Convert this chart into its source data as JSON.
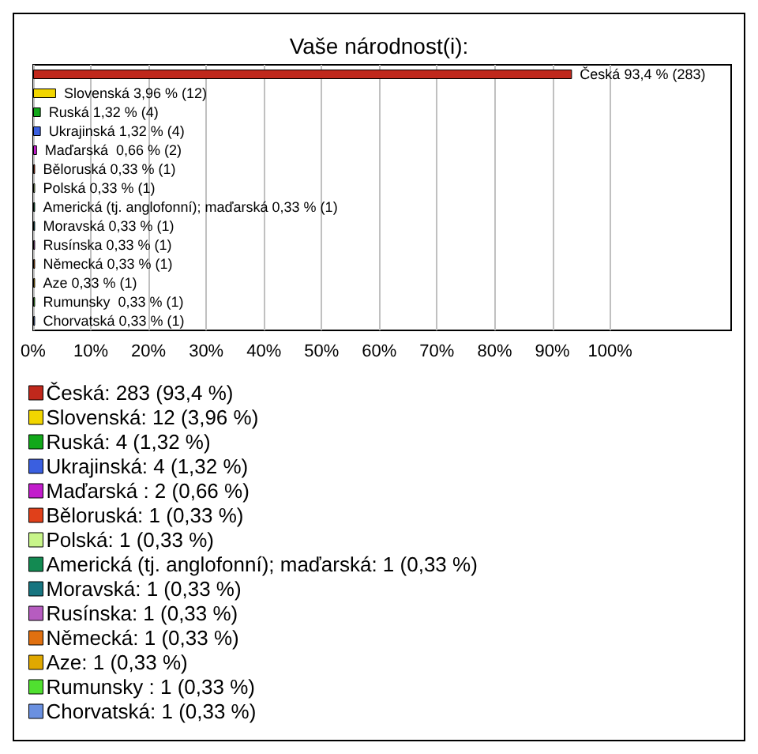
{
  "chart_data": {
    "type": "bar",
    "title": "Vaše národnost(i):",
    "orientation": "horizontal",
    "stacked": true,
    "categories": [
      null,
      null,
      null,
      null,
      null,
      null,
      null,
      null,
      null,
      null,
      null,
      null,
      null,
      null
    ],
    "series": [
      {
        "name": "Česká: 283 (93,4 %)",
        "color": "#c0281c",
        "values": [
          93.4,
          null,
          null,
          null,
          null,
          null,
          null,
          null,
          null,
          null,
          null,
          null,
          null,
          null
        ],
        "value_labels": [
          "Česká 93,4 % (283)",
          null,
          null,
          null,
          null,
          null,
          null,
          null,
          null,
          null,
          null,
          null,
          null,
          null
        ]
      },
      {
        "name": "Slovenská: 12 (3,96 %)",
        "color": "#f2d600",
        "values": [
          null,
          3.96,
          null,
          null,
          null,
          null,
          null,
          null,
          null,
          null,
          null,
          null,
          null,
          null
        ],
        "value_labels": [
          null,
          "Slovenská 3,96 % (12)",
          null,
          null,
          null,
          null,
          null,
          null,
          null,
          null,
          null,
          null,
          null,
          null
        ]
      },
      {
        "name": "Ruská: 4 (1,32 %)",
        "color": "#12a81a",
        "values": [
          null,
          null,
          1.32,
          null,
          null,
          null,
          null,
          null,
          null,
          null,
          null,
          null,
          null,
          null
        ],
        "value_labels": [
          null,
          null,
          "Ruská 1,32 % (4)",
          null,
          null,
          null,
          null,
          null,
          null,
          null,
          null,
          null,
          null,
          null
        ]
      },
      {
        "name": "Ukrajinská: 4 (1,32 %)",
        "color": "#3a5fe0",
        "values": [
          null,
          null,
          null,
          1.32,
          null,
          null,
          null,
          null,
          null,
          null,
          null,
          null,
          null,
          null
        ],
        "value_labels": [
          null,
          null,
          null,
          "Ukrajinská 1,32 % (4)",
          null,
          null,
          null,
          null,
          null,
          null,
          null,
          null,
          null,
          null
        ]
      },
      {
        "name": "Maďarská : 2 (0,66 %)",
        "color": "#c21ccc",
        "values": [
          null,
          null,
          null,
          null,
          0.66,
          null,
          null,
          null,
          null,
          null,
          null,
          null,
          null,
          null
        ],
        "value_labels": [
          null,
          null,
          null,
          null,
          "Maďarská  0,66 % (2)",
          null,
          null,
          null,
          null,
          null,
          null,
          null,
          null,
          null
        ]
      },
      {
        "name": "Běloruská: 1 (0,33 %)",
        "color": "#e0401a",
        "values": [
          null,
          null,
          null,
          null,
          null,
          0.33,
          null,
          null,
          null,
          null,
          null,
          null,
          null,
          null
        ],
        "value_labels": [
          null,
          null,
          null,
          null,
          null,
          "Běloruská 0,33 % (1)",
          null,
          null,
          null,
          null,
          null,
          null,
          null,
          null
        ]
      },
      {
        "name": "Polská: 1 (0,33 %)",
        "color": "#c8f58a",
        "values": [
          null,
          null,
          null,
          null,
          null,
          null,
          0.33,
          null,
          null,
          null,
          null,
          null,
          null,
          null
        ],
        "value_labels": [
          null,
          null,
          null,
          null,
          null,
          null,
          "Polská 0,33 % (1)",
          null,
          null,
          null,
          null,
          null,
          null,
          null
        ]
      },
      {
        "name": "Americká (tj. anglofonní); maďarská: 1 (0,33 %)",
        "color": "#138a52",
        "values": [
          null,
          null,
          null,
          null,
          null,
          null,
          null,
          0.33,
          null,
          null,
          null,
          null,
          null,
          null
        ],
        "value_labels": [
          null,
          null,
          null,
          null,
          null,
          null,
          null,
          "Americká (tj. anglofonní); maďarská 0,33 % (1)",
          null,
          null,
          null,
          null,
          null,
          null
        ]
      },
      {
        "name": "Moravská: 1 (0,33 %)",
        "color": "#177580",
        "values": [
          null,
          null,
          null,
          null,
          null,
          null,
          null,
          null,
          0.33,
          null,
          null,
          null,
          null,
          null
        ],
        "value_labels": [
          null,
          null,
          null,
          null,
          null,
          null,
          null,
          null,
          "Moravská 0,33 % (1)",
          null,
          null,
          null,
          null,
          null
        ]
      },
      {
        "name": "Rusínska: 1 (0,33 %)",
        "color": "#b65cc0",
        "values": [
          null,
          null,
          null,
          null,
          null,
          null,
          null,
          null,
          null,
          0.33,
          null,
          null,
          null,
          null
        ],
        "value_labels": [
          null,
          null,
          null,
          null,
          null,
          null,
          null,
          null,
          null,
          "Rusínska 0,33 % (1)",
          null,
          null,
          null,
          null
        ]
      },
      {
        "name": "Německá: 1 (0,33 %)",
        "color": "#e07010",
        "values": [
          null,
          null,
          null,
          null,
          null,
          null,
          null,
          null,
          null,
          null,
          0.33,
          null,
          null,
          null
        ],
        "value_labels": [
          null,
          null,
          null,
          null,
          null,
          null,
          null,
          null,
          null,
          null,
          "Německá 0,33 % (1)",
          null,
          null,
          null
        ]
      },
      {
        "name": "Aze: 1 (0,33 %)",
        "color": "#e0a800",
        "values": [
          null,
          null,
          null,
          null,
          null,
          null,
          null,
          null,
          null,
          null,
          null,
          0.33,
          null,
          null
        ],
        "value_labels": [
          null,
          null,
          null,
          null,
          null,
          null,
          null,
          null,
          null,
          null,
          null,
          "Aze 0,33 % (1)",
          null,
          null
        ]
      },
      {
        "name": "Rumunsky : 1 (0,33 %)",
        "color": "#50e030",
        "values": [
          null,
          null,
          null,
          null,
          null,
          null,
          null,
          null,
          null,
          null,
          null,
          null,
          0.33,
          null
        ],
        "value_labels": [
          null,
          null,
          null,
          null,
          null,
          null,
          null,
          null,
          null,
          null,
          null,
          null,
          "Rumunsky  0,33 % (1)",
          null
        ]
      },
      {
        "name": "Chorvatská: 1 (0,33 %)",
        "color": "#6a90e0",
        "values": [
          null,
          null,
          null,
          null,
          null,
          null,
          null,
          null,
          null,
          null,
          null,
          null,
          null,
          0.33
        ],
        "value_labels": [
          null,
          null,
          null,
          null,
          null,
          null,
          null,
          null,
          null,
          null,
          null,
          null,
          null,
          "Chorvatská 0,33 % (1)"
        ]
      }
    ],
    "xlim": [
      0,
      121
    ],
    "xticks": [
      {
        "value": 0,
        "label": "0%"
      },
      {
        "value": 10,
        "label": "10%"
      },
      {
        "value": 20,
        "label": "20%"
      },
      {
        "value": 30,
        "label": "30%"
      },
      {
        "value": 40,
        "label": "40%"
      },
      {
        "value": 50,
        "label": "50%"
      },
      {
        "value": 60,
        "label": "60%"
      },
      {
        "value": 70,
        "label": "70%"
      },
      {
        "value": 80,
        "label": "80%"
      },
      {
        "value": 90,
        "label": "90%"
      },
      {
        "value": 100,
        "label": "100%"
      }
    ],
    "grid": "x",
    "legend": "bottom"
  }
}
